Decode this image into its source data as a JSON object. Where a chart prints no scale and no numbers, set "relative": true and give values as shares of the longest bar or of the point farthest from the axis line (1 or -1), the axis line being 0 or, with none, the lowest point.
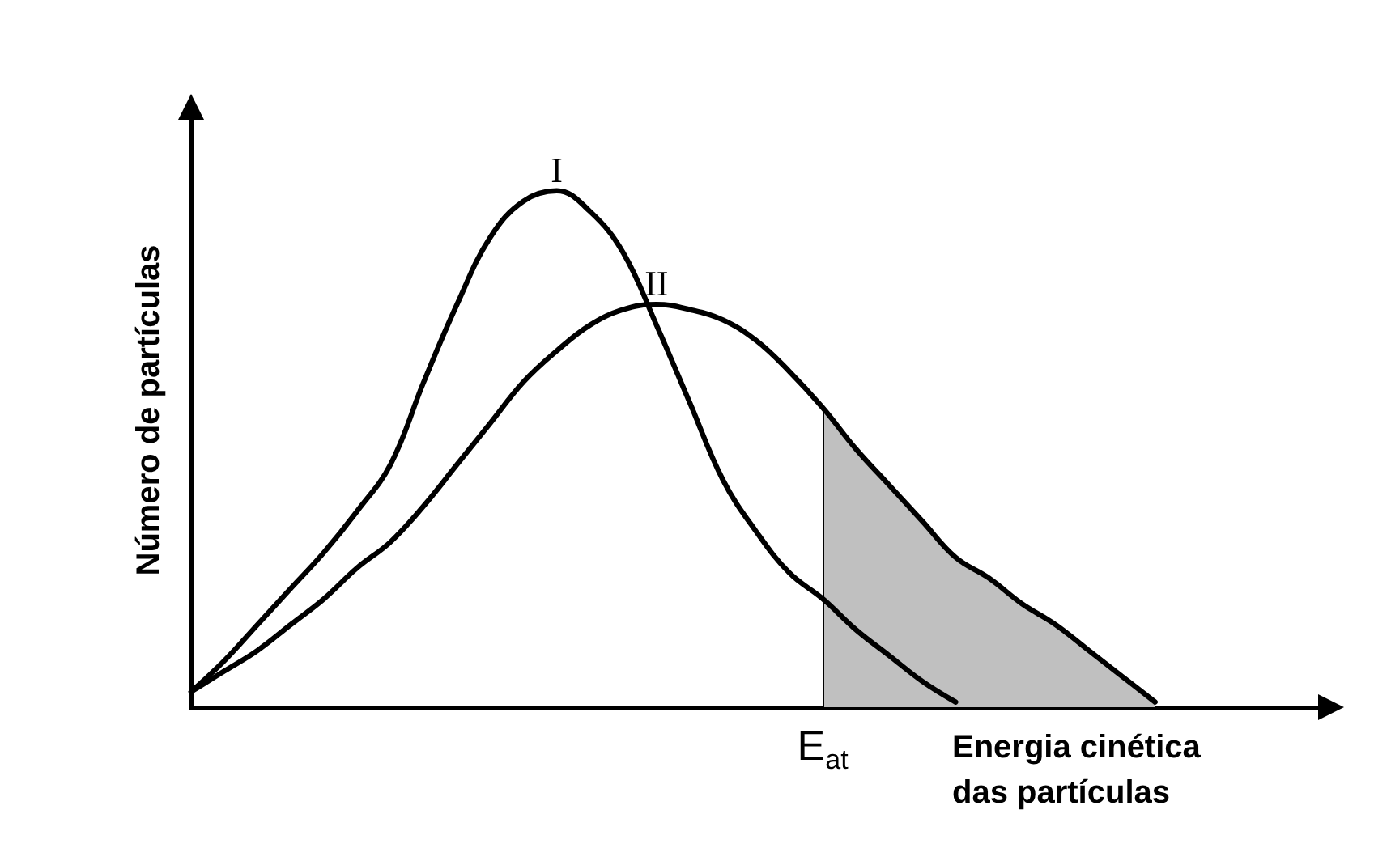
{
  "chart_data": {
    "type": "line",
    "relative": true,
    "ylabel": "Número de partículas",
    "xlabel": "Energia cinética das partículas",
    "categories": [
      null,
      null,
      null,
      null,
      null,
      null,
      null,
      null,
      null,
      null,
      null,
      null,
      null,
      null,
      null,
      null,
      null,
      null,
      null,
      null,
      null,
      null,
      null,
      null,
      null,
      null,
      null,
      null,
      null,
      null,
      null,
      null,
      null,
      null,
      null
    ],
    "series": [
      {
        "type": "area",
        "color": "#c0c0c0",
        "values": [
          null,
          null,
          null,
          null,
          null,
          null,
          null,
          null,
          null,
          null,
          null,
          null,
          null,
          null,
          null,
          null,
          null,
          null,
          null,
          0.58,
          0.5,
          0.43,
          0.36,
          0.29,
          0.25,
          0.2,
          0.16,
          0.11,
          0.06,
          0.01,
          null,
          null,
          null,
          null,
          null
        ]
      },
      {
        "name": "I",
        "color": "#000000",
        "values": [
          0.03,
          0.09,
          0.16,
          0.23,
          0.3,
          0.38,
          0.47,
          0.63,
          0.78,
          0.91,
          0.98,
          1.0,
          0.96,
          0.88,
          0.74,
          0.59,
          0.44,
          0.34,
          0.26,
          0.21,
          0.15,
          0.1,
          0.05,
          0.01,
          null,
          null,
          null,
          null,
          null,
          null,
          null,
          null,
          null,
          null,
          null
        ]
      },
      {
        "name": "II",
        "color": "#000000",
        "values": [
          0.03,
          0.07,
          0.11,
          0.16,
          0.21,
          0.27,
          0.32,
          0.39,
          0.47,
          0.55,
          0.63,
          0.69,
          0.74,
          0.77,
          0.78,
          0.77,
          0.75,
          0.71,
          0.65,
          0.58,
          0.5,
          0.43,
          0.36,
          0.29,
          0.25,
          0.2,
          0.16,
          0.11,
          0.06,
          0.01,
          null,
          null,
          null,
          null,
          null
        ]
      }
    ],
    "annotations": [
      "E$_{at}$"
    ],
    "grid": false,
    "legend": false,
    "marker": "none",
    "line_style": "solid"
  }
}
